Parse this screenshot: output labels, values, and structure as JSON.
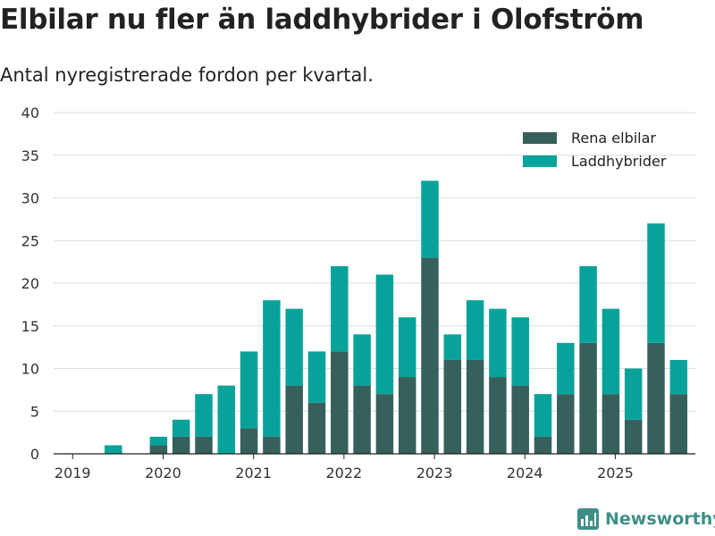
{
  "header": {
    "title": "Elbilar nu fler än laddhybrider i Olofström",
    "subtitle": "Antal nyregistrerade fordon per kvartal."
  },
  "brand": {
    "name": "Newsworthy",
    "color": "#3f8f89"
  },
  "colors": {
    "rena_elbilar": "#36605b",
    "laddhybrider": "#07a39b",
    "grid": "#dddddd"
  },
  "chart_data": {
    "type": "bar",
    "stacked": true,
    "title": "Elbilar nu fler än laddhybrider i Olofström",
    "subtitle": "Antal nyregistrerade fordon per kvartal.",
    "xlabel": "",
    "ylabel": "",
    "ylim": [
      0,
      40
    ],
    "yticks": [
      0,
      5,
      10,
      15,
      20,
      25,
      30,
      35,
      40
    ],
    "grid": true,
    "legend": "top-right",
    "categories": [
      "2019 Q1",
      "2019 Q2",
      "2019 Q3",
      "2019 Q4",
      "2020 Q1",
      "2020 Q2",
      "2020 Q3",
      "2020 Q4",
      "2021 Q1",
      "2021 Q2",
      "2021 Q3",
      "2021 Q4",
      "2022 Q1",
      "2022 Q2",
      "2022 Q3",
      "2022 Q4",
      "2023 Q1",
      "2023 Q2",
      "2023 Q3",
      "2023 Q4",
      "2024 Q1",
      "2024 Q2",
      "2024 Q3",
      "2024 Q4",
      "2025 Q1",
      "2025 Q2",
      "2025 Q3"
    ],
    "x_tick_labels": [
      "2019",
      "2020",
      "2021",
      "2022",
      "2023",
      "2024",
      "2025"
    ],
    "series": [
      {
        "name": "Rena elbilar",
        "color": "#36605b",
        "values": [
          0,
          0,
          0,
          1,
          2,
          2,
          0,
          3,
          2,
          8,
          6,
          12,
          8,
          7,
          9,
          23,
          11,
          11,
          9,
          8,
          2,
          7,
          13,
          7,
          4,
          13,
          7
        ]
      },
      {
        "name": "Laddhybrider",
        "color": "#07a39b",
        "values": [
          0,
          1,
          0,
          1,
          2,
          5,
          8,
          9,
          16,
          9,
          6,
          10,
          6,
          14,
          7,
          9,
          3,
          7,
          8,
          8,
          5,
          6,
          9,
          10,
          6,
          14,
          4
        ]
      }
    ]
  }
}
